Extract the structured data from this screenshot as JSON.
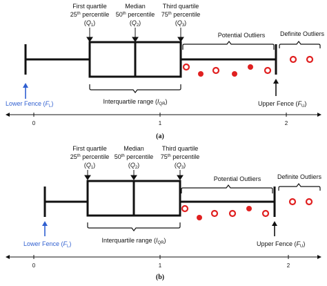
{
  "panels": [
    {
      "id": "a",
      "label": "(a)",
      "q1": {
        "title": "First quartile",
        "pct_num": "25",
        "pct_sup": "th",
        "pct_word": " percentile",
        "sym_open": "(",
        "sym": "Q",
        "sym_sub": "1",
        "sym_close": ")"
      },
      "q2": {
        "title": "Median",
        "pct_num": "50",
        "pct_sup": "th",
        "pct_word": " percentile",
        "sym_open": "(",
        "sym": "Q",
        "sym_sub": "2",
        "sym_close": ")"
      },
      "q3": {
        "title": "Third quartile",
        "pct_num": "75",
        "pct_sup": "th",
        "pct_word": " percentile",
        "sym_open": "(",
        "sym": "Q",
        "sym_sub": "3",
        "sym_close": ")"
      },
      "potential_outliers": "Potential Outliers",
      "definite_outliers": "Definite Outliers",
      "lower_fence": {
        "text": "Lower Fence (",
        "sym": "F",
        "sub": "L",
        "close": ")"
      },
      "upper_fence": {
        "text": "Upper Fence (",
        "sym": "F",
        "sub": "U",
        "close": ")"
      },
      "iqr": {
        "text": "Interquartile range (",
        "sym": "I",
        "sub": "QR",
        "close": ")"
      },
      "axis_ticks": [
        "0",
        "1",
        "2"
      ]
    },
    {
      "id": "b",
      "label": "(b)",
      "q1": {
        "title": "First quartile",
        "pct_num": "25",
        "pct_sup": "th",
        "pct_word": " percentile",
        "sym_open": "(",
        "sym": "Q",
        "sym_sub": "1",
        "sym_close": ")"
      },
      "q2": {
        "title": "Median",
        "pct_num": "50",
        "pct_sup": "th",
        "pct_word": " percentile",
        "sym_open": "(",
        "sym": "Q",
        "sym_sub": "2",
        "sym_close": ")"
      },
      "q3": {
        "title": "Third quartile",
        "pct_num": "75",
        "pct_sup": "th",
        "pct_word": " percentile",
        "sym_open": "(",
        "sym": "Q",
        "sym_sub": "3",
        "sym_close": ")"
      },
      "potential_outliers": "Potential Outliers",
      "definite_outliers": "Definite Outliers",
      "lower_fence": {
        "text": "Lower Fence (",
        "sym": "F",
        "sub": "L",
        "close": ")"
      },
      "upper_fence": {
        "text": "Upper Fence (",
        "sym": "F",
        "sub": "U",
        "close": ")"
      },
      "iqr": {
        "text": "Interquartile range (",
        "sym": "I",
        "sub": "QR",
        "close": ")"
      },
      "axis_ticks": [
        "0",
        "1",
        "2"
      ]
    }
  ],
  "colors": {
    "outline": "#111111",
    "outlier": "#e02020",
    "lower_fence": "#2f5fd0"
  }
}
